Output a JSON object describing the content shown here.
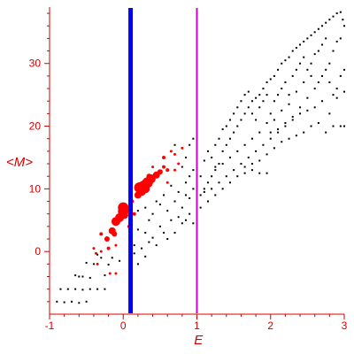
{
  "chart_data": {
    "type": "scatter",
    "title": "",
    "xlabel": "E",
    "ylabel": "<M>",
    "xlim": [
      -1,
      3
    ],
    "ylim": [
      -10,
      39
    ],
    "xticks": [
      -1,
      0,
      1,
      2,
      3
    ],
    "yticks": [
      0,
      10,
      20,
      30
    ],
    "grid": false,
    "colors": {
      "axis": "#d40000",
      "red_points": "#ff0000",
      "black_points": "#000000",
      "blue_line": "#0000ff",
      "magenta_line": "#cc00cc"
    },
    "vertical_lines": [
      {
        "x": 0.1,
        "color": "#0000ff"
      },
      {
        "x": 1.0,
        "color": "#cc00cc"
      }
    ],
    "series": [
      {
        "label_x": "E",
        "label_y": "<M>",
        "color": "#ff0000",
        "points": [
          [
            0.0,
            7.0,
            6
          ],
          [
            0.0,
            6.4,
            6
          ],
          [
            -0.05,
            5.4,
            5
          ],
          [
            -0.1,
            4.8,
            5
          ],
          [
            0.02,
            5.8,
            4
          ],
          [
            -0.15,
            3.3,
            4
          ],
          [
            -0.12,
            2.8,
            3
          ],
          [
            -0.22,
            2.0,
            3
          ],
          [
            -0.3,
            2.8,
            2
          ],
          [
            -0.2,
            0.5,
            2
          ],
          [
            -0.3,
            0.0,
            1.5
          ],
          [
            -0.37,
            -0.3,
            1.5
          ],
          [
            -0.1,
            1.0,
            1.5
          ],
          [
            -0.1,
            -3.5,
            1.5
          ],
          [
            -0.18,
            -3.5,
            1.5
          ],
          [
            0.2,
            9.0,
            4
          ],
          [
            0.22,
            10.2,
            6
          ],
          [
            0.28,
            10.5,
            6
          ],
          [
            0.33,
            11.0,
            6
          ],
          [
            0.3,
            10.0,
            5
          ],
          [
            0.38,
            11.6,
            5
          ],
          [
            0.45,
            12.2,
            4
          ],
          [
            0.25,
            9.6,
            5
          ],
          [
            0.35,
            12.0,
            3
          ],
          [
            0.5,
            12.7,
            3
          ],
          [
            0.55,
            13.5,
            2
          ],
          [
            0.6,
            13.0,
            2
          ],
          [
            0.55,
            15.0,
            2
          ],
          [
            0.65,
            16.0,
            1.5
          ],
          [
            0.6,
            11.0,
            1.5
          ],
          [
            0.7,
            15.5,
            1.5
          ],
          [
            0.75,
            14.0,
            1.5
          ],
          [
            -0.4,
            0.5,
            1.5
          ],
          [
            -0.35,
            -2.0,
            1.5
          ],
          [
            0.08,
            4.0,
            2
          ],
          [
            0.15,
            6.0,
            2
          ],
          [
            0.12,
            8.0,
            2
          ],
          [
            0.4,
            13.5,
            1.5
          ],
          [
            0.7,
            13.0,
            1.5
          ],
          [
            0.8,
            16.5,
            1.5
          ]
        ]
      },
      {
        "label_x": "E",
        "label_y": "<M>",
        "color": "#000000",
        "points": [
          [
            -0.9,
            -8.0
          ],
          [
            -0.85,
            -6.0
          ],
          [
            -0.8,
            -8.1
          ],
          [
            -0.75,
            -6.0
          ],
          [
            -0.7,
            -8.0
          ],
          [
            -0.65,
            -6.0
          ],
          [
            -0.6,
            -8.2
          ],
          [
            -0.55,
            -6.1
          ],
          [
            -0.5,
            -8.0
          ],
          [
            -0.45,
            -6.0
          ],
          [
            -0.35,
            -6.0
          ],
          [
            -0.25,
            -6.0
          ],
          [
            -0.55,
            -4.0
          ],
          [
            -0.45,
            -4.2
          ],
          [
            -0.4,
            -2.0
          ],
          [
            -0.5,
            -1.8
          ],
          [
            -0.6,
            -4.0
          ],
          [
            -0.65,
            -3.8
          ],
          [
            -0.35,
            -0.5
          ],
          [
            -0.25,
            -3.8
          ],
          [
            -0.3,
            -1.0
          ],
          [
            -0.2,
            -2.1
          ],
          [
            -0.15,
            -1.0
          ],
          [
            -0.05,
            -1.5
          ],
          [
            0.15,
            -0.3
          ],
          [
            0.2,
            -2.0
          ],
          [
            0.25,
            0.5
          ],
          [
            0.3,
            -0.8
          ],
          [
            0.15,
            1.0
          ],
          [
            0.1,
            2.5
          ],
          [
            0.2,
            3.5
          ],
          [
            0.3,
            3.0
          ],
          [
            0.35,
            1.5
          ],
          [
            0.4,
            2.2
          ],
          [
            0.45,
            1.0
          ],
          [
            0.5,
            4.0
          ],
          [
            0.55,
            3.0
          ],
          [
            0.6,
            2.0
          ],
          [
            0.65,
            5.0
          ],
          [
            0.7,
            3.0
          ],
          [
            0.75,
            5.5
          ],
          [
            0.8,
            4.5
          ],
          [
            0.85,
            5.0
          ],
          [
            0.9,
            6.0
          ],
          [
            0.95,
            4.5
          ],
          [
            0.2,
            6.5
          ],
          [
            0.3,
            7.0
          ],
          [
            0.4,
            6.0
          ],
          [
            0.5,
            7.5
          ],
          [
            0.6,
            6.5
          ],
          [
            0.7,
            8.0
          ],
          [
            0.8,
            7.0
          ],
          [
            0.85,
            9.0
          ],
          [
            0.9,
            8.5
          ],
          [
            0.95,
            10.0
          ],
          [
            0.35,
            5.0
          ],
          [
            0.45,
            8.0
          ],
          [
            0.55,
            9.0
          ],
          [
            0.65,
            10.5
          ],
          [
            0.75,
            9.5
          ],
          [
            0.85,
            11.0
          ],
          [
            0.9,
            12.0
          ],
          [
            0.95,
            13.0
          ],
          [
            0.8,
            13.5
          ],
          [
            0.85,
            15.0
          ],
          [
            0.9,
            17.0
          ],
          [
            0.95,
            18.0
          ],
          [
            0.7,
            17.0
          ],
          [
            1.05,
            9.0
          ],
          [
            1.1,
            10.0
          ],
          [
            1.15,
            11.0
          ],
          [
            1.2,
            12.0
          ],
          [
            1.25,
            13.0
          ],
          [
            1.3,
            14.0
          ],
          [
            1.35,
            16.0
          ],
          [
            1.4,
            17.0
          ],
          [
            1.45,
            18.0
          ],
          [
            1.5,
            19.0
          ],
          [
            1.55,
            20.0
          ],
          [
            1.6,
            21.0
          ],
          [
            1.65,
            22.0
          ],
          [
            1.7,
            23.0
          ],
          [
            1.75,
            24.0
          ],
          [
            1.8,
            24.5
          ],
          [
            1.85,
            25.0
          ],
          [
            1.9,
            26.0
          ],
          [
            1.95,
            27.0
          ],
          [
            2.0,
            27.5
          ],
          [
            2.05,
            28.0
          ],
          [
            2.1,
            29.0
          ],
          [
            2.15,
            30.0
          ],
          [
            2.2,
            30.5
          ],
          [
            2.25,
            31.0
          ],
          [
            2.3,
            32.0
          ],
          [
            2.35,
            32.5
          ],
          [
            2.4,
            33.0
          ],
          [
            2.45,
            33.5
          ],
          [
            2.5,
            34.0
          ],
          [
            2.55,
            34.5
          ],
          [
            2.6,
            35.0
          ],
          [
            2.65,
            35.5
          ],
          [
            2.7,
            36.0
          ],
          [
            2.75,
            36.5
          ],
          [
            2.8,
            37.0
          ],
          [
            2.85,
            37.5
          ],
          [
            2.9,
            38.0
          ],
          [
            2.95,
            38.2
          ],
          [
            2.98,
            37.0
          ],
          [
            1.05,
            12.0
          ],
          [
            1.1,
            14.5
          ],
          [
            1.15,
            16.0
          ],
          [
            1.2,
            15.0
          ],
          [
            1.25,
            17.0
          ],
          [
            1.3,
            18.0
          ],
          [
            1.35,
            19.5
          ],
          [
            1.4,
            20.0
          ],
          [
            1.45,
            21.0
          ],
          [
            1.5,
            22.0
          ],
          [
            1.55,
            23.0
          ],
          [
            1.6,
            24.0
          ],
          [
            1.65,
            25.0
          ],
          [
            1.7,
            25.5
          ],
          [
            1.75,
            22.0
          ],
          [
            1.8,
            21.0
          ],
          [
            1.85,
            23.0
          ],
          [
            1.9,
            24.0
          ],
          [
            1.95,
            25.0
          ],
          [
            2.0,
            22.0
          ],
          [
            2.05,
            24.0
          ],
          [
            2.1,
            25.0
          ],
          [
            2.15,
            26.0
          ],
          [
            2.2,
            27.0
          ],
          [
            2.25,
            25.0
          ],
          [
            2.3,
            28.0
          ],
          [
            2.35,
            29.0
          ],
          [
            2.4,
            30.0
          ],
          [
            2.45,
            31.0
          ],
          [
            2.5,
            29.0
          ],
          [
            2.55,
            30.0
          ],
          [
            2.6,
            31.5
          ],
          [
            2.65,
            32.0
          ],
          [
            2.7,
            33.0
          ],
          [
            2.75,
            34.0
          ],
          [
            2.8,
            30.0
          ],
          [
            2.85,
            32.0
          ],
          [
            2.9,
            33.5
          ],
          [
            2.95,
            34.0
          ],
          [
            3.0,
            36.0
          ],
          [
            2.9,
            26.0
          ],
          [
            2.95,
            28.0
          ],
          [
            3.0,
            29.0
          ],
          [
            2.85,
            25.0
          ],
          [
            2.8,
            27.0
          ],
          [
            2.7,
            28.0
          ],
          [
            2.6,
            26.0
          ],
          [
            2.5,
            24.5
          ],
          [
            2.4,
            23.0
          ],
          [
            2.3,
            21.0
          ],
          [
            2.2,
            20.0
          ],
          [
            2.1,
            19.0
          ],
          [
            2.0,
            18.0
          ],
          [
            1.9,
            17.0
          ],
          [
            1.8,
            16.0
          ],
          [
            1.7,
            15.0
          ],
          [
            1.6,
            14.0
          ],
          [
            1.5,
            13.0
          ],
          [
            1.4,
            12.0
          ],
          [
            1.3,
            11.0
          ],
          [
            1.2,
            10.0
          ],
          [
            1.1,
            9.5
          ],
          [
            1.05,
            7.0
          ],
          [
            1.15,
            8.0
          ],
          [
            1.25,
            9.0
          ],
          [
            1.35,
            10.0
          ],
          [
            1.45,
            11.0
          ],
          [
            1.55,
            12.0
          ],
          [
            1.65,
            12.5
          ],
          [
            1.75,
            13.0
          ],
          [
            1.85,
            12.5
          ],
          [
            1.95,
            12.5
          ],
          [
            2.0,
            19.0
          ],
          [
            2.1,
            19.5
          ],
          [
            2.2,
            20.5
          ],
          [
            2.3,
            21.5
          ],
          [
            2.4,
            22.0
          ],
          [
            2.5,
            22.5
          ],
          [
            2.6,
            23.0
          ],
          [
            2.7,
            24.0
          ],
          [
            2.8,
            22.0
          ],
          [
            2.9,
            24.5
          ],
          [
            3.0,
            25.5
          ],
          [
            2.85,
            20.0
          ],
          [
            2.95,
            20.0
          ],
          [
            3.0,
            20.0
          ],
          [
            2.75,
            19.0
          ],
          [
            2.65,
            20.5
          ],
          [
            2.55,
            20.0
          ],
          [
            2.45,
            19.0
          ],
          [
            2.35,
            18.5
          ],
          [
            2.25,
            18.0
          ],
          [
            2.15,
            17.5
          ],
          [
            2.05,
            16.5
          ],
          [
            1.95,
            15.5
          ],
          [
            1.85,
            14.5
          ],
          [
            1.75,
            14.0
          ],
          [
            1.65,
            13.5
          ],
          [
            2.45,
            27.0
          ],
          [
            2.55,
            28.0
          ],
          [
            2.65,
            27.0
          ],
          [
            2.75,
            29.0
          ],
          [
            2.35,
            25.5
          ],
          [
            2.25,
            23.5
          ],
          [
            2.15,
            22.5
          ],
          [
            2.05,
            21.0
          ],
          [
            1.95,
            20.5
          ],
          [
            1.85,
            19.0
          ],
          [
            1.75,
            18.0
          ],
          [
            1.65,
            17.0
          ],
          [
            1.55,
            16.0
          ],
          [
            1.45,
            15.0
          ],
          [
            1.35,
            14.0
          ],
          [
            1.25,
            13.5
          ]
        ]
      }
    ]
  }
}
